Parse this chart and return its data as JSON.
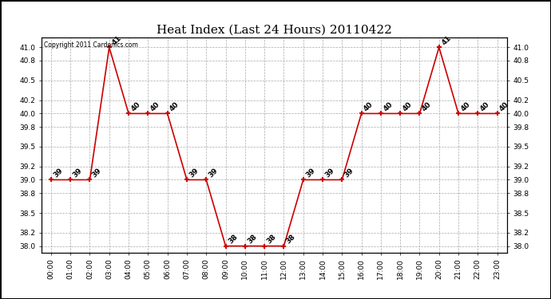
{
  "title": "Heat Index (Last 24 Hours) 20110422",
  "copyright_text": "Copyright 2011 Cardonics.com",
  "hours": [
    0,
    1,
    2,
    3,
    4,
    5,
    6,
    7,
    8,
    9,
    10,
    11,
    12,
    13,
    14,
    15,
    16,
    17,
    18,
    19,
    20,
    21,
    22,
    23
  ],
  "values": [
    39,
    39,
    39,
    41,
    40,
    40,
    40,
    39,
    39,
    38,
    38,
    38,
    38,
    39,
    39,
    39,
    40,
    40,
    40,
    40,
    41,
    40,
    40,
    40
  ],
  "xlabels": [
    "00:00",
    "01:00",
    "02:00",
    "03:00",
    "04:00",
    "05:00",
    "06:00",
    "07:00",
    "08:00",
    "09:00",
    "10:00",
    "11:00",
    "12:00",
    "13:00",
    "14:00",
    "15:00",
    "16:00",
    "17:00",
    "18:00",
    "19:00",
    "20:00",
    "21:00",
    "22:00",
    "23:00"
  ],
  "ylim": [
    37.9,
    41.15
  ],
  "yticks": [
    38.0,
    38.2,
    38.5,
    38.8,
    39.0,
    39.2,
    39.5,
    39.8,
    40.0,
    40.2,
    40.5,
    40.8,
    41.0
  ],
  "line_color": "#cc0000",
  "marker_color": "#cc0000",
  "grid_color": "#aaaaaa",
  "background_color": "#ffffff",
  "plot_bg_color": "#ffffff",
  "title_fontsize": 11,
  "label_fontsize": 6.5,
  "annotation_fontsize": 6.5,
  "figsize": [
    6.9,
    3.75
  ],
  "dpi": 100
}
